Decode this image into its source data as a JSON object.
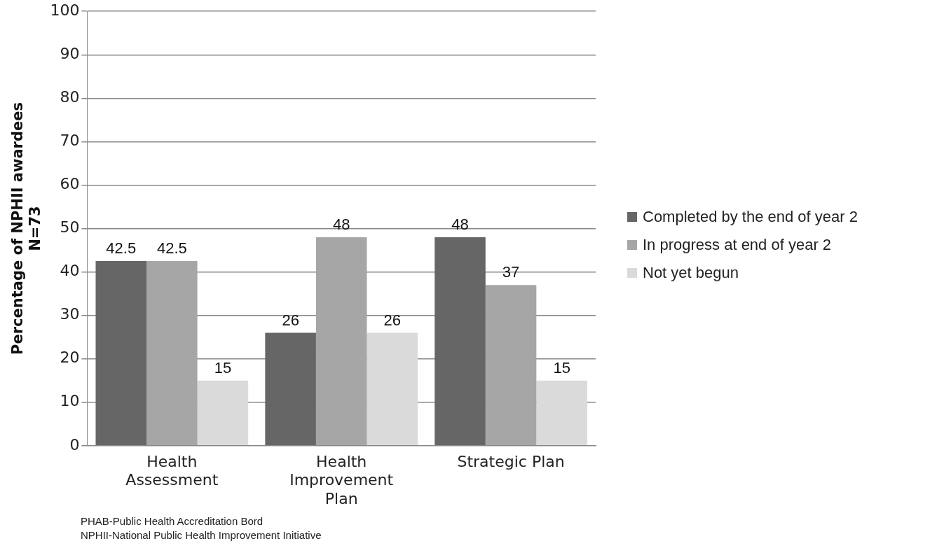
{
  "chart_data": {
    "type": "bar",
    "ylabel": "Percentage of NPHII awardees\nN=73",
    "categories": [
      "Health Assessment",
      "Health Improvement Plan",
      "Strategic Plan"
    ],
    "series": [
      {
        "name": "Completed by the end of year 2",
        "color": "#666666",
        "values": [
          42.5,
          26,
          48
        ]
      },
      {
        "name": "In progress at end of year 2",
        "color": "#a6a6a6",
        "values": [
          42.5,
          48,
          37
        ]
      },
      {
        "name": "Not yet begun",
        "color": "#dadada",
        "values": [
          15,
          26,
          15
        ]
      }
    ],
    "ylim": [
      0,
      100
    ],
    "yticks": [
      0,
      10,
      20,
      30,
      40,
      50,
      60,
      70,
      80,
      90,
      100
    ],
    "grid": "y",
    "legend": "right",
    "data_labels": true,
    "annotations": [
      "PHAB-Public Health Accreditation Bord",
      "NPHII-National Public Health Improvement Initiative"
    ]
  }
}
